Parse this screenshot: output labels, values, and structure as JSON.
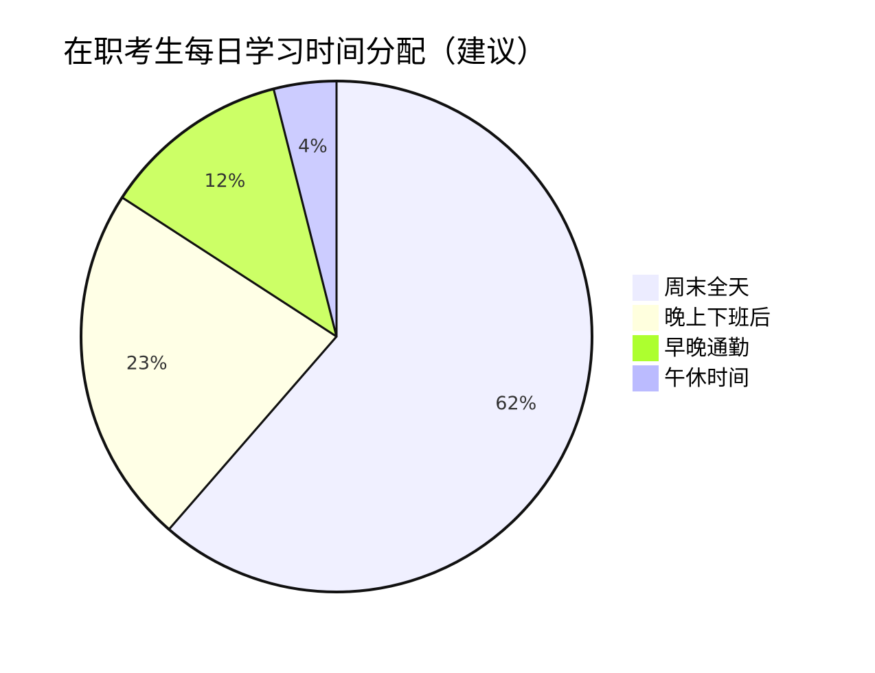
{
  "chart_data": {
    "type": "pie",
    "title": "在职考生每日学习时间分配（建议）",
    "categories": [
      "周末全天",
      "晚上下班后",
      "早晚通勤",
      "午休时间"
    ],
    "values": [
      62,
      23,
      12,
      4
    ],
    "labels": [
      "62%",
      "23%",
      "12%",
      "4%"
    ],
    "colors": [
      "#f0f0ff",
      "#ffffe6",
      "#ccff66",
      "#ccccff"
    ],
    "legend_colors": [
      "#ececff",
      "#ffffde",
      "#adff2f",
      "#bbbbff"
    ],
    "start_angle": "top (12 o'clock), clockwise",
    "legend_position": "right"
  }
}
